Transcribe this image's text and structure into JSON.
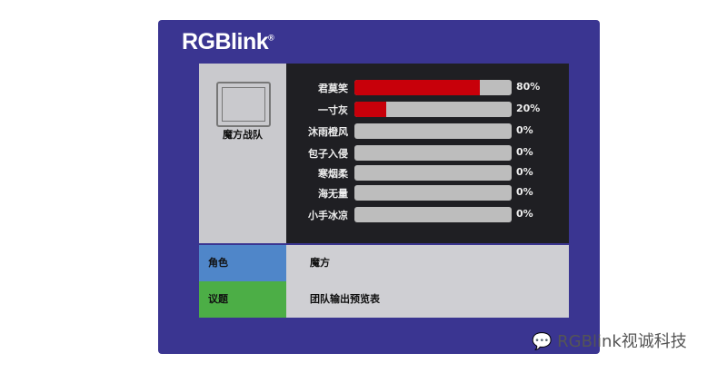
{
  "logo": "RGBlink",
  "team": {
    "name": "魔方战队"
  },
  "players": [
    {
      "name": "君莫笑",
      "percent": 80
    },
    {
      "name": "一寸灰",
      "percent": 20
    },
    {
      "name": "沐雨橙风",
      "percent": 0
    },
    {
      "name": "包子入侵",
      "percent": 0
    },
    {
      "name": "寒烟柔",
      "percent": 0
    },
    {
      "name": "海无量",
      "percent": 0
    },
    {
      "name": "小手冰凉",
      "percent": 0
    }
  ],
  "info": [
    {
      "label": "角色",
      "value": "魔方",
      "color": "#4f86c9"
    },
    {
      "label": "议题",
      "value": "团队输出预览表",
      "color": "#4cae46"
    }
  ],
  "colors": {
    "panel": "#3a3591",
    "bar_fill": "#c8000a",
    "bar_track": "#bdbdbd"
  },
  "watermark": "RGBlink视诚科技"
}
